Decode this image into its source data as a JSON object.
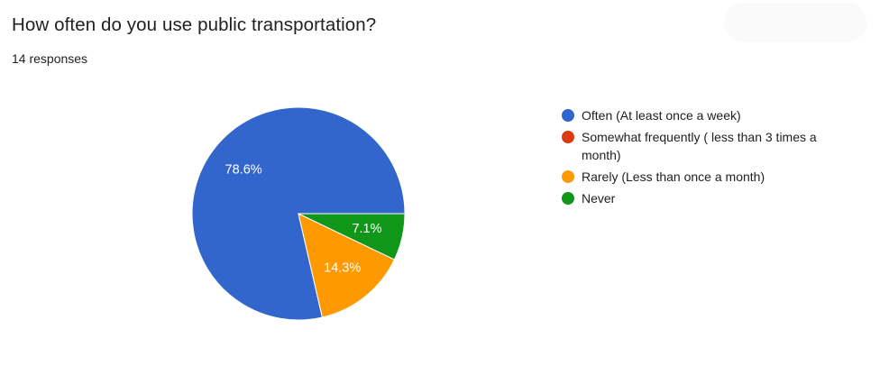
{
  "question": {
    "title": "How often do you use public transportation?",
    "responses": "14 responses"
  },
  "chart_data": {
    "type": "pie",
    "categories": [
      "Often (At least once a week)",
      "Somewhat frequently ( less than 3 times a month)",
      "Rarely (Less than once a month)",
      "Never"
    ],
    "values": [
      78.6,
      0,
      14.3,
      7.1
    ],
    "data_labels": [
      "78.6%",
      "",
      "14.3%",
      "7.1%"
    ],
    "colors": [
      "#3366cc",
      "#dc3912",
      "#ff9900",
      "#109618"
    ],
    "legend_position": "right"
  }
}
